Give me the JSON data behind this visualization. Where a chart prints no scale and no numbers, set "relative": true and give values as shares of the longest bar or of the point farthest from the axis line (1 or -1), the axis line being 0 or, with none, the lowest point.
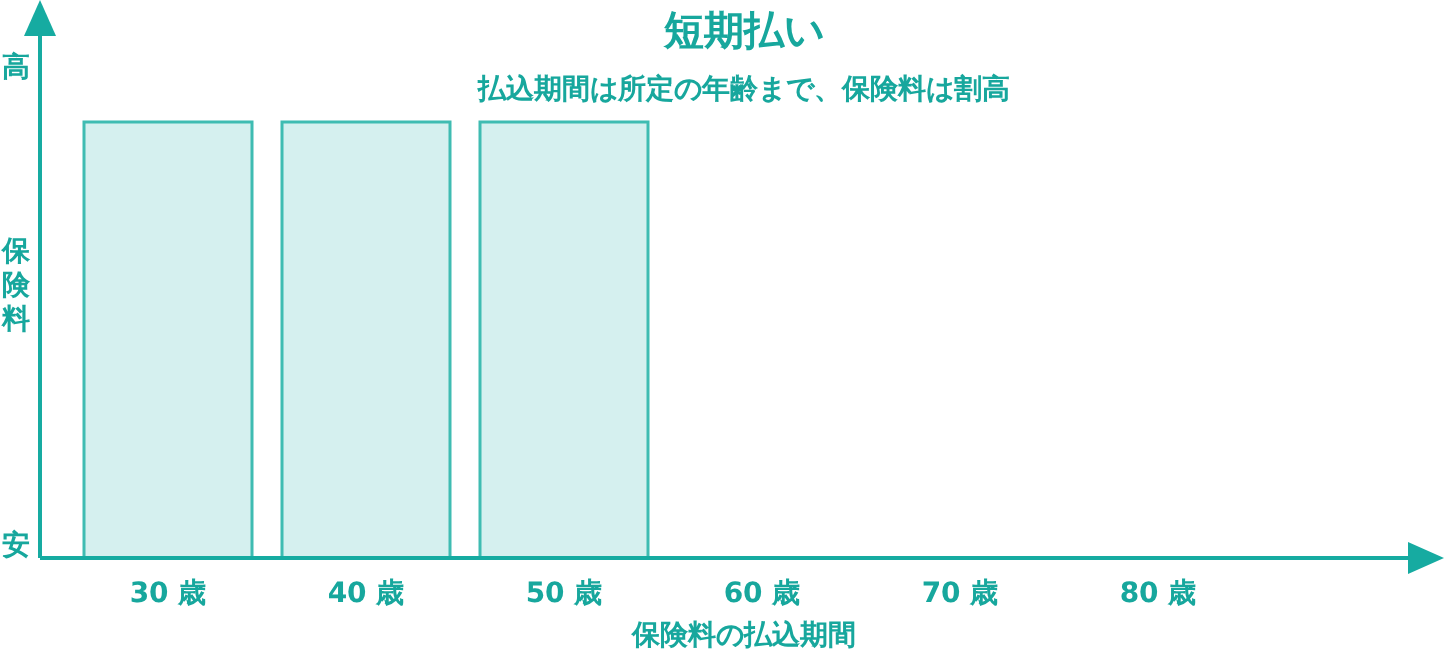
{
  "chart_data": {
    "type": "bar",
    "relative": true,
    "title": "短期払い",
    "subtitle": "払込期間は所定の年齢まで、保険料は割高",
    "xlabel": "保険料の払込期間",
    "ylabel": "保険料",
    "annotations": [
      "高",
      "安"
    ],
    "categories": [
      "30 歳",
      "40 歳",
      "50 歳",
      "60 歳",
      "70 歳",
      "80 歳"
    ],
    "values": [
      1,
      1,
      1,
      null,
      null,
      null
    ],
    "color": "#d5f0ef"
  }
}
